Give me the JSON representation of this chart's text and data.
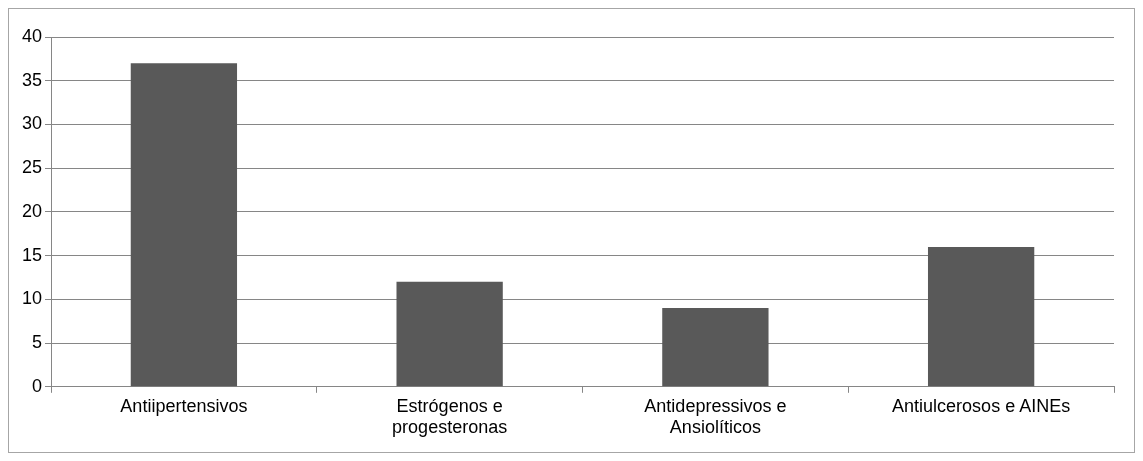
{
  "chart_data": {
    "type": "bar",
    "categories": [
      "Antiipertensivos",
      "Estrógenos e progesteronas",
      "Antidepressivos e Ansiolíticos",
      "Antiulcerosos e AINEs"
    ],
    "values": [
      37,
      12,
      9,
      16
    ],
    "color": "#595959",
    "ylim": [
      0,
      40
    ],
    "yticks": [
      0,
      5,
      10,
      15,
      20,
      25,
      30,
      35,
      40
    ],
    "grid": "y",
    "legend": false
  }
}
